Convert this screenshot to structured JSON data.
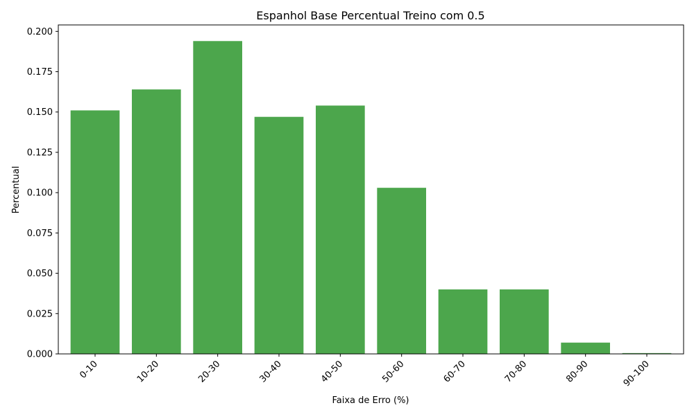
{
  "chart_data": {
    "type": "bar",
    "title": "Espanhol Base Percentual Treino com 0.5",
    "xlabel": "Faixa de Erro (%)",
    "ylabel": "Percentual",
    "categories": [
      "0-10",
      "10-20",
      "20-30",
      "30-40",
      "40-50",
      "50-60",
      "60-70",
      "70-80",
      "80-90",
      "90-100"
    ],
    "values": [
      0.151,
      0.164,
      0.194,
      0.147,
      0.154,
      0.103,
      0.04,
      0.04,
      0.007,
      0.0005
    ],
    "ylim": [
      0,
      0.204
    ],
    "yticks": [
      "0.000",
      "0.025",
      "0.050",
      "0.075",
      "0.100",
      "0.125",
      "0.150",
      "0.175",
      "0.200"
    ],
    "grid": false,
    "bar_color": "#4ca64c",
    "x_tick_rotation_deg": 45
  }
}
